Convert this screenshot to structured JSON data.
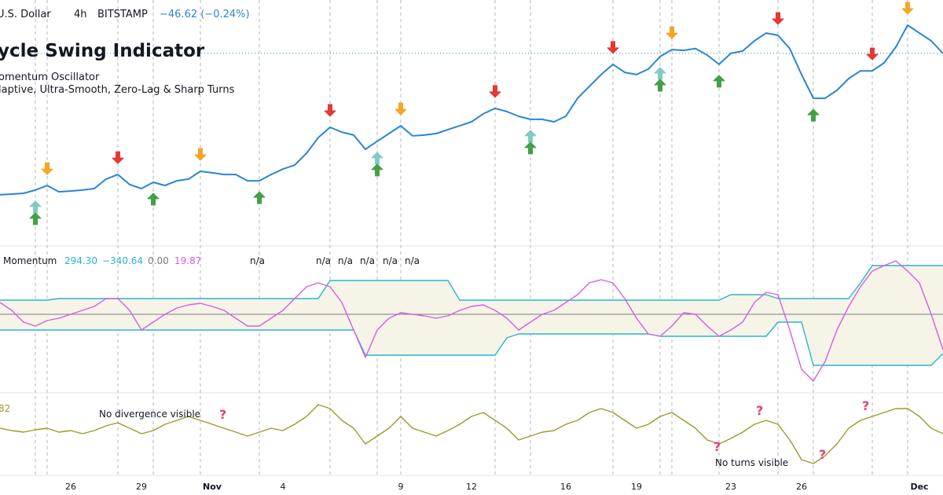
{
  "header": {
    "symbol": "U.S. Dollar",
    "interval": "4h",
    "exchange": "BITSTAMP",
    "change": "−46.62 (−0.24%)"
  },
  "indicator": {
    "title": "ycle Swing Indicator",
    "lines": [
      "omentum Oscillator",
      "laptive, Ultra-Smooth, Zero-Lag & Sharp Turns"
    ]
  },
  "chart_data": [
    {
      "type": "line",
      "categories": [
        null,
        null,
        null,
        null,
        null,
        null,
        "26",
        null,
        null,
        null,
        null,
        null,
        "29",
        null,
        null,
        null,
        null,
        null,
        "Nov",
        null,
        null,
        null,
        null,
        null,
        "4",
        null,
        null,
        null,
        null,
        null,
        null,
        null,
        null,
        null,
        "9",
        null,
        null,
        null,
        null,
        null,
        "12",
        null,
        null,
        null,
        null,
        null,
        null,
        null,
        "16",
        null,
        null,
        null,
        null,
        null,
        "19",
        null,
        null,
        null,
        null,
        null,
        null,
        null,
        "23",
        null,
        null,
        null,
        null,
        null,
        "26",
        null,
        null,
        null,
        null,
        null,
        null,
        null,
        null,
        null,
        "Dec",
        null,
        null
      ],
      "ylim": [
        12800,
        20000
      ],
      "series": [
        {
          "name": "U.S. Dollar",
          "color": "#2a86d1",
          "values": [
            12960,
            12990,
            13020,
            13150,
            13330,
            13080,
            13110,
            13150,
            13210,
            13590,
            13770,
            13370,
            13210,
            13460,
            13330,
            13520,
            13590,
            13900,
            13840,
            13770,
            13770,
            13520,
            13520,
            13770,
            13990,
            14150,
            14620,
            15250,
            15660,
            15470,
            15350,
            14780,
            15100,
            15410,
            15720,
            15320,
            15350,
            15410,
            15570,
            15720,
            15880,
            16200,
            16420,
            16290,
            16100,
            15980,
            15980,
            15880,
            16100,
            16820,
            17300,
            17770,
            18180,
            17860,
            17770,
            17990,
            18490,
            18770,
            18740,
            18810,
            18550,
            18180,
            18620,
            18710,
            19120,
            19430,
            19340,
            18810,
            17770,
            16820,
            16820,
            17140,
            17610,
            17920,
            17920,
            18240,
            18870,
            19750,
            19430,
            19120,
            18620
          ]
        }
      ],
      "arrows": [
        {
          "index": 3,
          "dir": "up",
          "color": "#80cbc4"
        },
        {
          "index": 3,
          "dir": "up",
          "color": "#43a047"
        },
        {
          "index": 4,
          "dir": "down",
          "color": "#f5a623"
        },
        {
          "index": 10,
          "dir": "down",
          "color": "#e53935"
        },
        {
          "index": 13,
          "dir": "up",
          "color": "#43a047"
        },
        {
          "index": 17,
          "dir": "down",
          "color": "#f5a623"
        },
        {
          "index": 22,
          "dir": "up",
          "color": "#43a047"
        },
        {
          "index": 28,
          "dir": "down",
          "color": "#e53935"
        },
        {
          "index": 32,
          "dir": "up",
          "color": "#80cbc4"
        },
        {
          "index": 32,
          "dir": "up",
          "color": "#43a047"
        },
        {
          "index": 34,
          "dir": "down",
          "color": "#f5a623"
        },
        {
          "index": 42,
          "dir": "down",
          "color": "#e53935"
        },
        {
          "index": 45,
          "dir": "up",
          "color": "#80cbc4"
        },
        {
          "index": 45,
          "dir": "up",
          "color": "#43a047"
        },
        {
          "index": 52,
          "dir": "down",
          "color": "#e53935"
        },
        {
          "index": 56,
          "dir": "up",
          "color": "#80cbc4"
        },
        {
          "index": 56,
          "dir": "up",
          "color": "#43a047"
        },
        {
          "index": 57,
          "dir": "down",
          "color": "#f5a623"
        },
        {
          "index": 61,
          "dir": "up",
          "color": "#43a047"
        },
        {
          "index": 66,
          "dir": "down",
          "color": "#e53935"
        },
        {
          "index": 69,
          "dir": "up",
          "color": "#43a047"
        },
        {
          "index": 74,
          "dir": "down",
          "color": "#e53935"
        },
        {
          "index": 77,
          "dir": "down",
          "color": "#f5a623"
        }
      ]
    },
    {
      "type": "line",
      "title": "Momentum",
      "legend_values": [
        {
          "value": 294.3,
          "label": "294.30"
        },
        {
          "value": -340.64,
          "label": "−340.64"
        },
        {
          "value": 0,
          "label": "0.00"
        },
        19.87
      ],
      "na_labels": [
        "n/a",
        "n/a",
        "n/a",
        "n/a",
        "n/a",
        "n/a"
      ],
      "ylim": [
        -420,
        420
      ],
      "zero_line": 0,
      "fill_color": "#f6f4e6",
      "series": [
        {
          "name": "Upper",
          "color": "#26b5d0",
          "values": [
            90,
            90,
            90,
            90,
            90,
            100,
            100,
            100,
            100,
            100,
            100,
            100,
            100,
            100,
            100,
            100,
            100,
            100,
            100,
            100,
            100,
            100,
            100,
            100,
            100,
            100,
            100,
            100,
            215,
            215,
            215,
            215,
            215,
            215,
            215,
            215,
            215,
            215,
            215,
            90,
            90,
            90,
            90,
            90,
            90,
            90,
            90,
            90,
            90,
            90,
            90,
            90,
            90,
            90,
            90,
            90,
            90,
            90,
            90,
            90,
            90,
            90,
            125,
            125,
            125,
            125,
            100,
            100,
            100,
            100,
            100,
            100,
            100,
            200,
            310,
            310,
            310,
            310,
            310,
            310,
            310
          ]
        },
        {
          "name": "Lower",
          "color": "#26b5d0",
          "values": [
            -100,
            -100,
            -100,
            -100,
            -100,
            -100,
            -100,
            -100,
            -100,
            -100,
            -100,
            -100,
            -100,
            -100,
            -100,
            -100,
            -100,
            -100,
            -100,
            -100,
            -100,
            -100,
            -100,
            -100,
            -100,
            -100,
            -100,
            -100,
            -100,
            -100,
            -100,
            -260,
            -260,
            -260,
            -260,
            -260,
            -260,
            -260,
            -260,
            -260,
            -260,
            -260,
            -260,
            -150,
            -125,
            -125,
            -125,
            -125,
            -125,
            -125,
            -125,
            -125,
            -125,
            -125,
            -125,
            -125,
            -140,
            -140,
            -140,
            -140,
            -140,
            -140,
            -140,
            -140,
            -140,
            -140,
            -50,
            -50,
            -50,
            -325,
            -325,
            -325,
            -325,
            -325,
            -325,
            -325,
            -325,
            -325,
            -325,
            -325,
            -250
          ]
        },
        {
          "name": "Oscillator",
          "color": "#d35fe0",
          "values": [
            75,
            25,
            -50,
            -75,
            -40,
            -25,
            0,
            25,
            50,
            100,
            100,
            25,
            -100,
            -50,
            0,
            40,
            60,
            70,
            50,
            25,
            -25,
            -75,
            -75,
            -25,
            25,
            100,
            175,
            200,
            175,
            75,
            -100,
            -275,
            -100,
            -25,
            10,
            0,
            -10,
            -25,
            -10,
            25,
            50,
            60,
            25,
            -25,
            -100,
            -50,
            0,
            25,
            75,
            125,
            200,
            220,
            200,
            100,
            -25,
            -125,
            -140,
            -75,
            10,
            0,
            -75,
            -140,
            -100,
            -50,
            75,
            140,
            125,
            -100,
            -350,
            -425,
            -300,
            -100,
            50,
            175,
            275,
            310,
            340,
            275,
            200,
            0,
            -225
          ]
        }
      ]
    },
    {
      "type": "line",
      "legend_values": [
        82
      ],
      "ylim": [
        0,
        100
      ],
      "annotations": [
        "No divergence visible",
        "No turns visible"
      ],
      "question_marks": [
        "?",
        "?",
        "?",
        "?",
        "?"
      ],
      "series": [
        {
          "name": "Cycle",
          "color": "#9c9a2a",
          "values": [
            55,
            52,
            50,
            53,
            55,
            50,
            52,
            48,
            52,
            58,
            62,
            55,
            48,
            52,
            60,
            65,
            70,
            65,
            60,
            55,
            50,
            45,
            50,
            55,
            52,
            60,
            70,
            85,
            80,
            65,
            55,
            35,
            45,
            55,
            70,
            55,
            50,
            45,
            52,
            60,
            70,
            75,
            65,
            55,
            40,
            45,
            50,
            52,
            60,
            65,
            75,
            80,
            75,
            65,
            55,
            60,
            70,
            75,
            65,
            55,
            40,
            35,
            42,
            50,
            60,
            65,
            60,
            40,
            15,
            10,
            20,
            35,
            55,
            65,
            70,
            75,
            80,
            80,
            70,
            55,
            48
          ]
        }
      ]
    }
  ]
}
